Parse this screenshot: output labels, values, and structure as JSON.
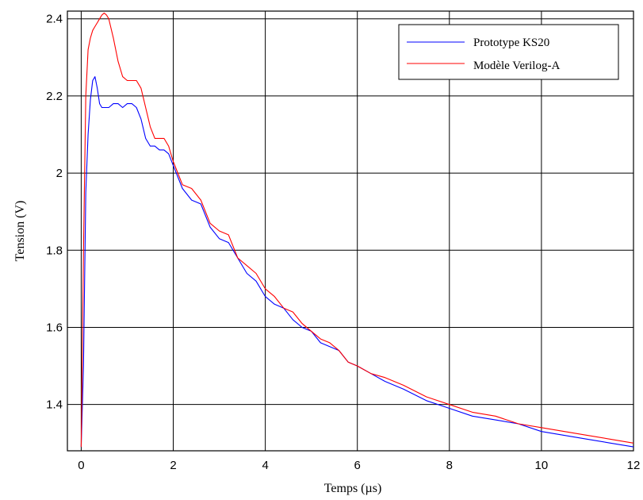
{
  "chart_data": {
    "type": "line",
    "title": "",
    "xlabel": "Temps (µs)",
    "ylabel": "Tension (V)",
    "xlim": [
      -0.3,
      12
    ],
    "ylim": [
      1.28,
      2.42
    ],
    "xticks": [
      "0",
      "2",
      "4",
      "6",
      "8",
      "10",
      "12"
    ],
    "xtick_values": [
      0,
      2,
      4,
      6,
      8,
      10,
      12
    ],
    "yticks": [
      "1.4",
      "1.6",
      "1.8",
      "2",
      "2.2",
      "2.4"
    ],
    "ytick_values": [
      1.4,
      1.6,
      1.8,
      2.0,
      2.2,
      2.4
    ],
    "grid": true,
    "legend_position": "top-right",
    "series": [
      {
        "name": "Prototype KS20",
        "color": "#0000ff",
        "x": [
          0.0,
          0.05,
          0.1,
          0.15,
          0.2,
          0.25,
          0.3,
          0.35,
          0.4,
          0.45,
          0.5,
          0.6,
          0.7,
          0.8,
          0.9,
          1.0,
          1.1,
          1.2,
          1.3,
          1.4,
          1.5,
          1.6,
          1.7,
          1.8,
          1.9,
          2.0,
          2.2,
          2.4,
          2.6,
          2.8,
          3.0,
          3.2,
          3.4,
          3.6,
          3.8,
          4.0,
          4.2,
          4.4,
          4.6,
          4.8,
          5.0,
          5.2,
          5.4,
          5.6,
          5.8,
          6.0,
          6.3,
          6.6,
          7.0,
          7.5,
          8.0,
          8.5,
          9.0,
          9.5,
          10.0,
          10.5,
          11.0,
          11.5,
          12.0
        ],
        "y": [
          1.29,
          1.5,
          1.95,
          2.1,
          2.19,
          2.24,
          2.25,
          2.22,
          2.18,
          2.17,
          2.17,
          2.17,
          2.18,
          2.18,
          2.17,
          2.18,
          2.18,
          2.17,
          2.14,
          2.09,
          2.07,
          2.07,
          2.06,
          2.06,
          2.05,
          2.02,
          1.96,
          1.93,
          1.92,
          1.86,
          1.83,
          1.82,
          1.78,
          1.74,
          1.72,
          1.68,
          1.66,
          1.65,
          1.62,
          1.6,
          1.59,
          1.56,
          1.55,
          1.54,
          1.51,
          1.5,
          1.48,
          1.46,
          1.44,
          1.41,
          1.39,
          1.37,
          1.36,
          1.35,
          1.33,
          1.32,
          1.31,
          1.3,
          1.29
        ]
      },
      {
        "name": "Modèle Verilog-A",
        "color": "#ff0000",
        "x": [
          0.0,
          0.05,
          0.1,
          0.15,
          0.2,
          0.25,
          0.3,
          0.35,
          0.4,
          0.45,
          0.5,
          0.55,
          0.6,
          0.7,
          0.8,
          0.9,
          1.0,
          1.1,
          1.2,
          1.3,
          1.4,
          1.5,
          1.6,
          1.7,
          1.8,
          1.9,
          2.0,
          2.2,
          2.4,
          2.6,
          2.8,
          3.0,
          3.2,
          3.4,
          3.6,
          3.8,
          4.0,
          4.2,
          4.4,
          4.6,
          4.8,
          5.0,
          5.2,
          5.4,
          5.6,
          5.8,
          6.0,
          6.3,
          6.6,
          7.0,
          7.5,
          8.0,
          8.5,
          9.0,
          9.5,
          10.0,
          10.5,
          11.0,
          11.5,
          12.0
        ],
        "y": [
          1.29,
          1.8,
          2.2,
          2.32,
          2.35,
          2.37,
          2.38,
          2.39,
          2.4,
          2.41,
          2.415,
          2.41,
          2.4,
          2.35,
          2.29,
          2.25,
          2.24,
          2.24,
          2.24,
          2.22,
          2.17,
          2.12,
          2.09,
          2.09,
          2.09,
          2.07,
          2.03,
          1.97,
          1.96,
          1.93,
          1.87,
          1.85,
          1.84,
          1.78,
          1.76,
          1.74,
          1.7,
          1.68,
          1.65,
          1.64,
          1.61,
          1.59,
          1.57,
          1.56,
          1.54,
          1.51,
          1.5,
          1.48,
          1.47,
          1.45,
          1.42,
          1.4,
          1.38,
          1.37,
          1.35,
          1.34,
          1.33,
          1.32,
          1.31,
          1.3
        ]
      }
    ]
  }
}
